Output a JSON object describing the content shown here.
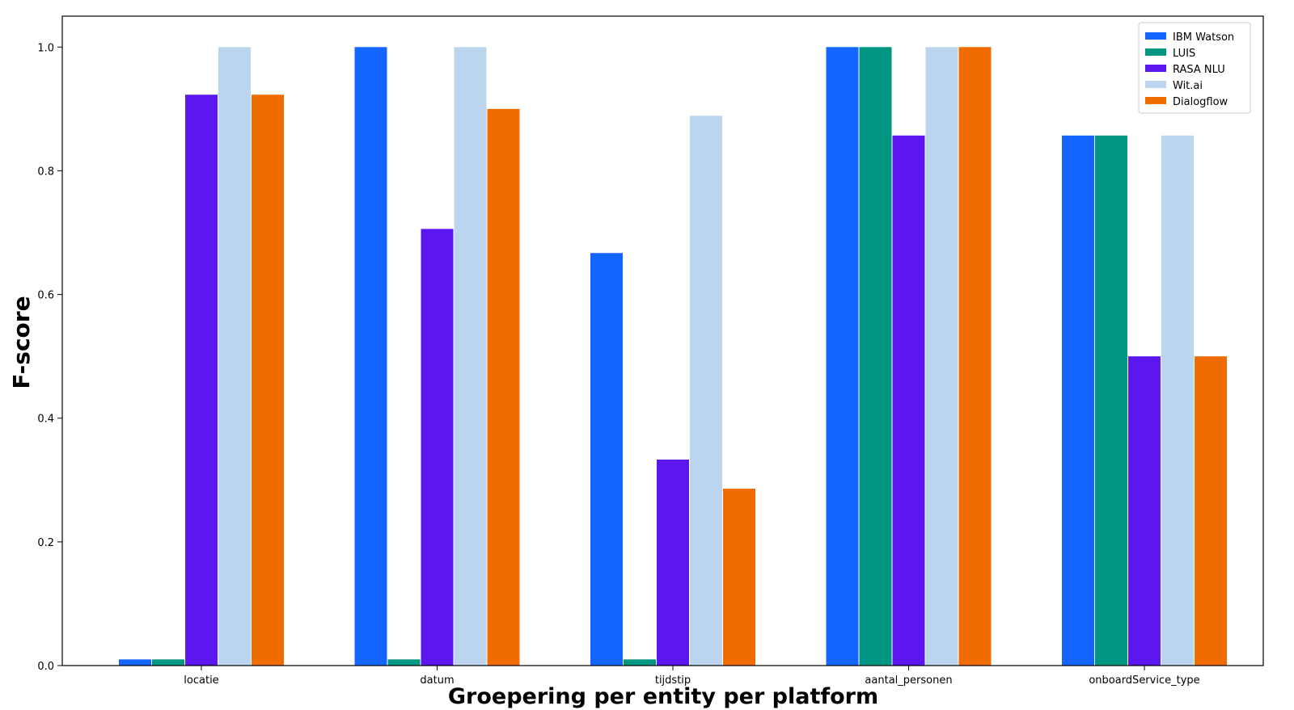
{
  "chart_data": {
    "type": "bar",
    "xlabel": "Groepering per entity per platform",
    "ylabel": "F-score",
    "categories": [
      "locatie",
      "datum",
      "tijdstip",
      "aantal_personen",
      "onboardService_type"
    ],
    "ylim": [
      0,
      1.05
    ],
    "yticks": [
      "0.0",
      "0.2",
      "0.4",
      "0.6",
      "0.8",
      "1.0"
    ],
    "legend_position": "top-right",
    "grid": false,
    "series": [
      {
        "name": "IBM Watson",
        "color": "#1464ff",
        "values": [
          0.01,
          1.0,
          0.667,
          1.0,
          0.857
        ]
      },
      {
        "name": "LUIS",
        "color": "#009682",
        "values": [
          0.01,
          0.01,
          0.01,
          1.0,
          0.857
        ]
      },
      {
        "name": "RASA NLU",
        "color": "#5c17ee",
        "values": [
          0.923,
          0.706,
          0.333,
          0.857,
          0.5
        ]
      },
      {
        "name": "Wit.ai",
        "color": "#bcd5ee",
        "values": [
          1.0,
          1.0,
          0.889,
          1.0,
          0.857
        ]
      },
      {
        "name": "Dialogflow",
        "color": "#f06c00",
        "values": [
          0.923,
          0.9,
          0.286,
          1.0,
          0.5
        ]
      }
    ]
  }
}
